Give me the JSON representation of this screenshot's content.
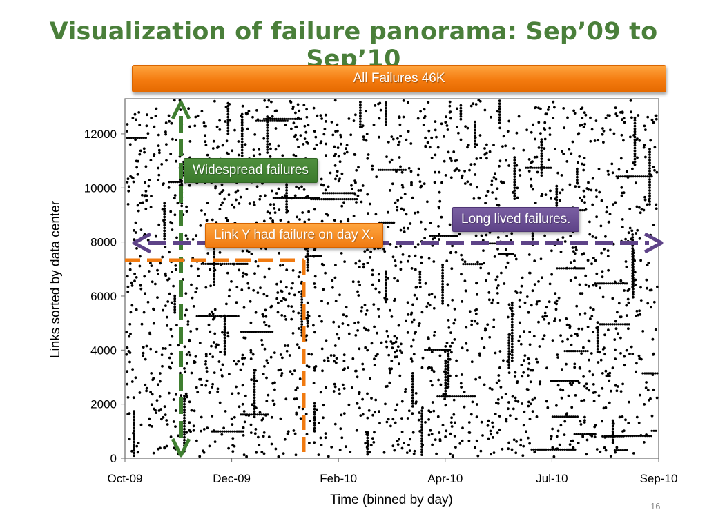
{
  "slide": {
    "title": "Visualization of failure panorama: Sep’09 to Sep’10",
    "page_number": "16"
  },
  "banner": {
    "label": "All Failures 46K",
    "color": "#f47b0f"
  },
  "callouts": {
    "widespread": {
      "label": "Widespread failures",
      "color": "#3f7f30"
    },
    "link_day": {
      "label": "Link Y had failure on day X.",
      "color": "#f47b0f"
    },
    "long_lived": {
      "label": "Long lived failures.",
      "color": "#5e4388"
    }
  },
  "chart_data": {
    "type": "scatter",
    "xlabel": "Time (binned by day)",
    "ylabel": "Links sorted by data center",
    "x_ticks": [
      "Oct-09",
      "Dec-09",
      "Feb-10",
      "Apr-10",
      "Jul-10",
      "Sep-10"
    ],
    "y_ticks": [
      0,
      2000,
      4000,
      6000,
      8000,
      10000,
      12000
    ],
    "ylim": [
      0,
      13300
    ],
    "grid": false,
    "point_color": "#000000",
    "annotations": {
      "widespread_day": "Nov-09",
      "example_link": 7400,
      "example_day": "Jan-10",
      "long_lived_link": 8000
    }
  }
}
